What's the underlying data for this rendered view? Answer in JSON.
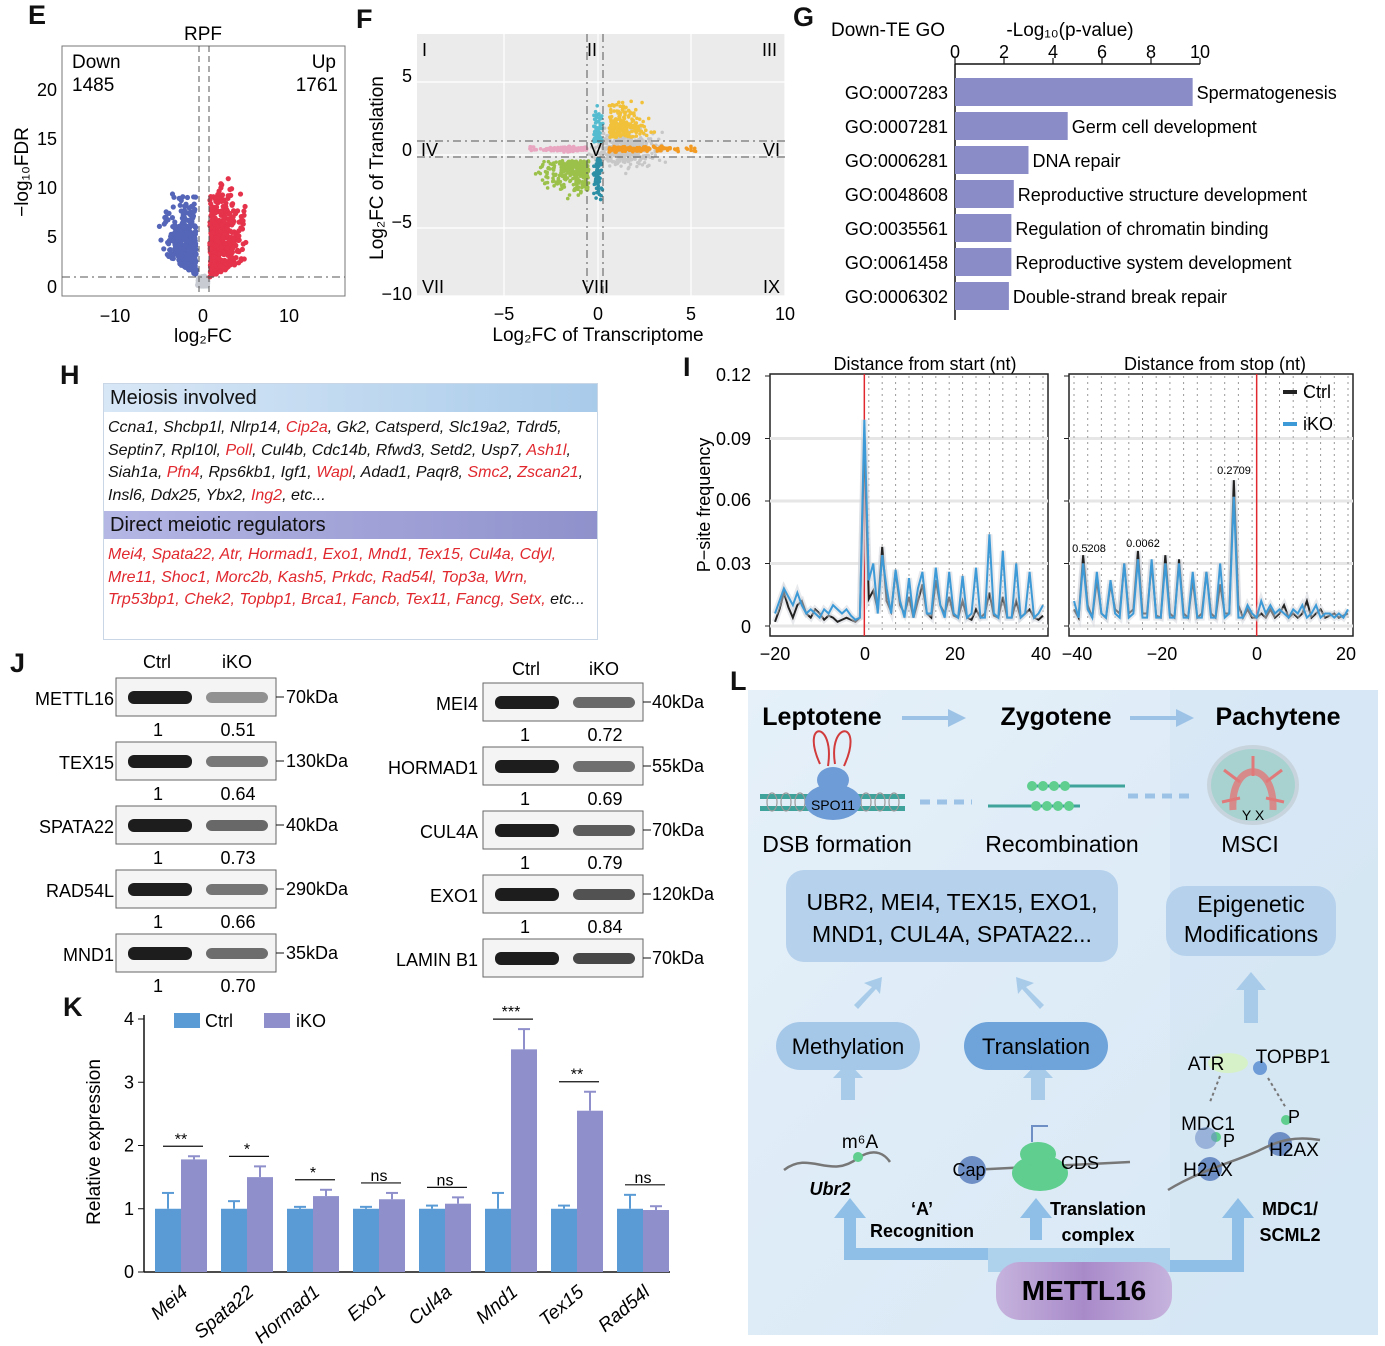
{
  "panels": {
    "E": "E",
    "F": "F",
    "G": "G",
    "H": "H",
    "I": "I",
    "J": "J",
    "K": "K",
    "L": "L"
  },
  "E": {
    "title": "RPF",
    "down_label": "Down",
    "down_count": "1485",
    "up_label": "Up",
    "up_count": "1761",
    "xlabel": "log₂FC",
    "ylabel": "−log₁₀FDR",
    "xticks": [
      "−10",
      "0",
      "10"
    ],
    "yticks": [
      "0",
      "5",
      "10",
      "15",
      "20"
    ],
    "colors": {
      "down": "#5566b8",
      "up": "#e5334b",
      "ns": "#c8ccd2"
    }
  },
  "F": {
    "xlabel": "Log₂FC of Transcriptome",
    "ylabel": "Log₂FC of Translation",
    "xticks": [
      "−5",
      "0",
      "5",
      "10"
    ],
    "yticks": [
      "5",
      "0",
      "−5",
      "−10"
    ],
    "quadrants": [
      "I",
      "II",
      "III",
      "IV",
      "V",
      "VI",
      "VII",
      "VIII",
      "IX"
    ],
    "colors": {
      "yellow": "#f2c13b",
      "green": "#9cc14a",
      "cyan": "#55bcd0",
      "pink": "#e9a6c0",
      "orange": "#f39a22",
      "teal": "#2c8fa6",
      "grey": "#c7c7c7"
    }
  },
  "G": {
    "category_header": "Down-TE GO",
    "axis_title": "-Log₁₀(p-value)",
    "bar_color": "#8a8cc7",
    "chart_data": {
      "type": "bar",
      "orientation": "horizontal",
      "categories": [
        "GO:0007283",
        "GO:0007281",
        "GO:0006281",
        "GO:0048608",
        "GO:0035561",
        "GO:0061458",
        "GO:0006302"
      ],
      "terms": [
        "Spermatogenesis",
        "Germ cell development",
        "DNA repair",
        "Reproductive structure development",
        "Regulation of chromatin binding",
        "Reproductive system development",
        "Double-strand break repair"
      ],
      "values": [
        9.7,
        4.6,
        3.0,
        2.4,
        2.3,
        2.3,
        2.2
      ],
      "xlim": [
        0,
        10
      ],
      "xticks": [
        "0",
        "2",
        "4",
        "6",
        "8",
        "10"
      ]
    }
  },
  "H": {
    "sections": [
      {
        "title": "Meiosis involved",
        "color": "#a9cbea",
        "genes": [
          {
            "t": "Ccna1,",
            "c": "black"
          },
          {
            "t": "Shcbp1l,",
            "c": "black"
          },
          {
            "t": "Nlrp14,",
            "c": "black"
          },
          {
            "t": "Cip2a",
            "c": "red"
          },
          {
            "t": ",",
            "c": "black"
          },
          {
            "t": "Gk2,",
            "c": "black"
          },
          {
            "t": "Catsperd,",
            "c": "black"
          },
          {
            "t": "Slc19a2,",
            "c": "black"
          },
          {
            "t": "Tdrd5,",
            "c": "black"
          },
          {
            "t": "Septin7,",
            "c": "black"
          },
          {
            "t": "Rpl10l,",
            "c": "black"
          },
          {
            "t": "Poll",
            "c": "red"
          },
          {
            "t": ",",
            "c": "black"
          },
          {
            "t": "Cul4b,",
            "c": "black"
          },
          {
            "t": "Cdc14b,",
            "c": "black"
          },
          {
            "t": "Rfwd3,",
            "c": "black"
          },
          {
            "t": "Setd2,",
            "c": "black"
          },
          {
            "t": "Usp7,",
            "c": "black"
          },
          {
            "t": "Ash1l",
            "c": "red"
          },
          {
            "t": ",",
            "c": "black"
          },
          {
            "t": "Siah1a,",
            "c": "black"
          },
          {
            "t": "Pfn4",
            "c": "red"
          },
          {
            "t": ",",
            "c": "black"
          },
          {
            "t": "Rps6kb1,",
            "c": "black"
          },
          {
            "t": "Igf1,",
            "c": "black"
          },
          {
            "t": "Wapl",
            "c": "red"
          },
          {
            "t": ",",
            "c": "black"
          },
          {
            "t": "Adad1,",
            "c": "black"
          },
          {
            "t": "Paqr8,",
            "c": "black"
          },
          {
            "t": "Smc2",
            "c": "red"
          },
          {
            "t": ",",
            "c": "black"
          },
          {
            "t": "Zscan21",
            "c": "red"
          },
          {
            "t": ",",
            "c": "black"
          },
          {
            "t": "Insl6,",
            "c": "black"
          },
          {
            "t": "Ddx25,",
            "c": "black"
          },
          {
            "t": "Ybx2,",
            "c": "black"
          },
          {
            "t": "Ing2",
            "c": "red"
          },
          {
            "t": ",",
            "c": "black"
          },
          {
            "t": "etc...",
            "c": "black"
          }
        ]
      },
      {
        "title": "Direct meiotic regulators",
        "color": "#9395d0",
        "genes": [
          {
            "t": "Mei4,",
            "c": "red"
          },
          {
            "t": "Spata22,",
            "c": "red"
          },
          {
            "t": "Atr,",
            "c": "red"
          },
          {
            "t": "Hormad1,",
            "c": "red"
          },
          {
            "t": "Exo1,",
            "c": "red"
          },
          {
            "t": "Mnd1,",
            "c": "red"
          },
          {
            "t": "Tex15,",
            "c": "red"
          },
          {
            "t": "Cul4a,",
            "c": "red"
          },
          {
            "t": "Cdyl,",
            "c": "red"
          },
          {
            "t": "Mre11,",
            "c": "red"
          },
          {
            "t": "Shoc1,",
            "c": "red"
          },
          {
            "t": "Morc2b,",
            "c": "red"
          },
          {
            "t": "Kash5,",
            "c": "red"
          },
          {
            "t": "Prkdc,",
            "c": "red"
          },
          {
            "t": "Rad54l,",
            "c": "red"
          },
          {
            "t": "Top3a,",
            "c": "red"
          },
          {
            "t": "Wrn,",
            "c": "red"
          },
          {
            "t": "Trp53bp1,",
            "c": "red"
          },
          {
            "t": "Chek2,",
            "c": "red"
          },
          {
            "t": "Topbp1,",
            "c": "red"
          },
          {
            "t": "Brca1,",
            "c": "red"
          },
          {
            "t": "Fancb,",
            "c": "red"
          },
          {
            "t": "Tex11,",
            "c": "red"
          },
          {
            "t": "Fancg,",
            "c": "red"
          },
          {
            "t": "Setx,",
            "c": "red"
          },
          {
            "t": "etc...",
            "c": "black"
          }
        ]
      }
    ]
  },
  "I": {
    "ylabel": "P−site frequency",
    "left_title": "Distance from start (nt)",
    "right_title": "Distance from stop (nt)",
    "yticks": [
      "0",
      "0.03",
      "0.06",
      "0.09",
      "0.12"
    ],
    "left_xticks": [
      "−20",
      "0",
      "20",
      "40"
    ],
    "right_xticks": [
      "−40",
      "−20",
      "0",
      "20"
    ],
    "legend": [
      {
        "name": "Ctrl",
        "color": "#222222"
      },
      {
        "name": "iKO",
        "color": "#3d9ad6"
      }
    ],
    "annotations": [
      "0.5208",
      "0.0062",
      "0.2709"
    ],
    "chart_data": {
      "type": "line",
      "ylim": [
        0,
        0.12
      ],
      "left": {
        "x": [
          -20,
          -19,
          -18,
          -17,
          -16,
          -15,
          -14,
          -13,
          -12,
          -11,
          -10,
          -9,
          -8,
          -7,
          -6,
          -5,
          -4,
          -3,
          -2,
          -1,
          0,
          1,
          2,
          3,
          4,
          5,
          6,
          7,
          8,
          9,
          10,
          11,
          12,
          13,
          14,
          15,
          16,
          17,
          18,
          19,
          20,
          21,
          22,
          23,
          24,
          25,
          26,
          27,
          28,
          29,
          30,
          31,
          32,
          33,
          34,
          35,
          36,
          37,
          38,
          39,
          40
        ],
        "series": [
          {
            "name": "Ctrl",
            "values": [
              0.002,
              0.008,
              0.016,
              0.009,
              0.004,
              0.01,
              0.012,
              0.006,
              0.004,
              0.008,
              0.006,
              0.003,
              0.005,
              0.004,
              0.002,
              0.003,
              0.004,
              0.003,
              0.002,
              0.004,
              0.09,
              0.013,
              0.017,
              0.008,
              0.038,
              0.012,
              0.007,
              0.026,
              0.01,
              0.006,
              0.014,
              0.004,
              0.012,
              0.02,
              0.006,
              0.004,
              0.022,
              0.01,
              0.006,
              0.014,
              0.005,
              0.004,
              0.012,
              0.004,
              0.003,
              0.008,
              0.004,
              0.006,
              0.016,
              0.005,
              0.004,
              0.014,
              0.004,
              0.004,
              0.012,
              0.004,
              0.006,
              0.008,
              0.004,
              0.003,
              0.005
            ]
          },
          {
            "name": "iKO",
            "values": [
              0.006,
              0.012,
              0.018,
              0.014,
              0.01,
              0.016,
              0.01,
              0.006,
              0.008,
              0.006,
              0.004,
              0.008,
              0.006,
              0.01,
              0.008,
              0.006,
              0.008,
              0.005,
              0.003,
              0.004,
              0.099,
              0.022,
              0.03,
              0.006,
              0.034,
              0.018,
              0.006,
              0.027,
              0.012,
              0.004,
              0.023,
              0.004,
              0.018,
              0.026,
              0.006,
              0.006,
              0.028,
              0.01,
              0.004,
              0.026,
              0.006,
              0.004,
              0.024,
              0.004,
              0.006,
              0.028,
              0.004,
              0.004,
              0.044,
              0.006,
              0.004,
              0.036,
              0.004,
              0.004,
              0.03,
              0.004,
              0.006,
              0.026,
              0.004,
              0.006,
              0.01
            ]
          }
        ]
      },
      "right": {
        "x": [
          -40,
          -39,
          -38,
          -37,
          -36,
          -35,
          -34,
          -33,
          -32,
          -31,
          -30,
          -29,
          -28,
          -27,
          -26,
          -25,
          -24,
          -23,
          -22,
          -21,
          -20,
          -19,
          -18,
          -17,
          -16,
          -15,
          -14,
          -13,
          -12,
          -11,
          -10,
          -9,
          -8,
          -7,
          -6,
          -5,
          -4,
          -3,
          -2,
          -1,
          0,
          1,
          2,
          3,
          4,
          5,
          6,
          7,
          8,
          9,
          10,
          11,
          12,
          13,
          14,
          15,
          16,
          17,
          18,
          19,
          20
        ],
        "series": [
          {
            "name": "Ctrl",
            "values": [
              0.008,
              0.004,
              0.034,
              0.01,
              0.004,
              0.022,
              0.006,
              0.004,
              0.02,
              0.008,
              0.006,
              0.03,
              0.006,
              0.008,
              0.036,
              0.006,
              0.006,
              0.03,
              0.005,
              0.004,
              0.034,
              0.006,
              0.004,
              0.032,
              0.006,
              0.004,
              0.022,
              0.004,
              0.006,
              0.026,
              0.006,
              0.004,
              0.02,
              0.006,
              0.006,
              0.07,
              0.01,
              0.004,
              0.008,
              0.004,
              0.004,
              0.006,
              0.004,
              0.008,
              0.004,
              0.006,
              0.01,
              0.004,
              0.006,
              0.004,
              0.006,
              0.012,
              0.004,
              0.006,
              0.008,
              0.004,
              0.005,
              0.006,
              0.004,
              0.005,
              0.006
            ]
          },
          {
            "name": "iKO",
            "values": [
              0.012,
              0.004,
              0.03,
              0.008,
              0.004,
              0.026,
              0.006,
              0.004,
              0.022,
              0.006,
              0.004,
              0.03,
              0.004,
              0.006,
              0.032,
              0.004,
              0.004,
              0.032,
              0.004,
              0.004,
              0.03,
              0.004,
              0.004,
              0.03,
              0.004,
              0.004,
              0.026,
              0.004,
              0.004,
              0.026,
              0.004,
              0.004,
              0.03,
              0.004,
              0.006,
              0.062,
              0.004,
              0.004,
              0.01,
              0.006,
              0.004,
              0.012,
              0.006,
              0.01,
              0.006,
              0.008,
              0.006,
              0.004,
              0.008,
              0.006,
              0.01,
              0.004,
              0.006,
              0.01,
              0.004,
              0.006,
              0.006,
              0.004,
              0.006,
              0.004,
              0.008
            ]
          }
        ]
      }
    }
  },
  "J": {
    "col_ctrl": "Ctrl",
    "col_iko": "iKO",
    "left_blots": [
      {
        "protein": "METTL16",
        "kda": "70kDa",
        "ctrl": "1",
        "iko": "0.51"
      },
      {
        "protein": "TEX15",
        "kda": "130kDa",
        "ctrl": "1",
        "iko": "0.64"
      },
      {
        "protein": "SPATA22",
        "kda": "40kDa",
        "ctrl": "1",
        "iko": "0.73"
      },
      {
        "protein": "RAD54L",
        "kda": "290kDa",
        "ctrl": "1",
        "iko": "0.66"
      },
      {
        "protein": "MND1",
        "kda": "35kDa",
        "ctrl": "1",
        "iko": "0.70"
      }
    ],
    "right_blots": [
      {
        "protein": "MEI4",
        "kda": "40kDa",
        "ctrl": "1",
        "iko": "0.72"
      },
      {
        "protein": "HORMAD1",
        "kda": "55kDa",
        "ctrl": "1",
        "iko": "0.69"
      },
      {
        "protein": "CUL4A",
        "kda": "70kDa",
        "ctrl": "1",
        "iko": "0.79"
      },
      {
        "protein": "EXO1",
        "kda": "120kDa",
        "ctrl": "1",
        "iko": "0.84"
      },
      {
        "protein": "LAMIN B1",
        "kda": "70kDa",
        "ctrl": "",
        "iko": ""
      }
    ]
  },
  "K": {
    "ylabel": "Relative expression",
    "legend": [
      {
        "name": "Ctrl",
        "color": "#5b9bd5"
      },
      {
        "name": "iKO",
        "color": "#8e8fcb"
      }
    ],
    "yticks": [
      "0",
      "1",
      "2",
      "3",
      "4"
    ],
    "chart_data": {
      "type": "bar",
      "categories": [
        "Mei4",
        "Spata22",
        "Hormad1",
        "Exo1",
        "Cul4a",
        "Mnd1",
        "Tex15",
        "Rad54l"
      ],
      "series": [
        {
          "name": "Ctrl",
          "values": [
            1.0,
            1.0,
            1.0,
            1.0,
            1.0,
            1.0,
            1.0,
            1.0
          ],
          "errors": [
            0.25,
            0.12,
            0.03,
            0.03,
            0.05,
            0.25,
            0.05,
            0.22
          ]
        },
        {
          "name": "iKO",
          "values": [
            1.78,
            1.5,
            1.2,
            1.15,
            1.08,
            3.52,
            2.55,
            0.98
          ],
          "errors": [
            0.05,
            0.17,
            0.1,
            0.1,
            0.1,
            0.32,
            0.3,
            0.06
          ]
        }
      ],
      "significance": [
        "**",
        "*",
        "*",
        "ns",
        "ns",
        "***",
        "**",
        "ns"
      ],
      "ylim": [
        0,
        4
      ]
    }
  },
  "L": {
    "stages": [
      "Leptotene",
      "Zygotene",
      "Pachytene"
    ],
    "events": [
      "DSB formation",
      "Recombination",
      "MSCI"
    ],
    "spo11": "SPO11",
    "yx": "Y  X",
    "targets_box": "UBR2, MEI4, TEX15, EXO1, MND1, CUL4A, SPATA22...",
    "epigenetic_box": "Epigenetic Modifications",
    "methylation": "Methylation",
    "translation": "Translation",
    "m6a": "m⁶A",
    "ubr2": "Ubr2",
    "cap": "Cap",
    "cds": "CDS",
    "atr": "ATR",
    "topbp1": "TOPBP1",
    "mdc1": "MDC1",
    "p1": "P",
    "p2": "P",
    "h2ax_left": "H2AX",
    "h2ax_right": "H2AX",
    "recognition": "‘A’ Recognition",
    "translation_complex": "Translation complex",
    "mdc1_scml2": "MDC1/ SCML2",
    "mettl16": "METTL16"
  }
}
